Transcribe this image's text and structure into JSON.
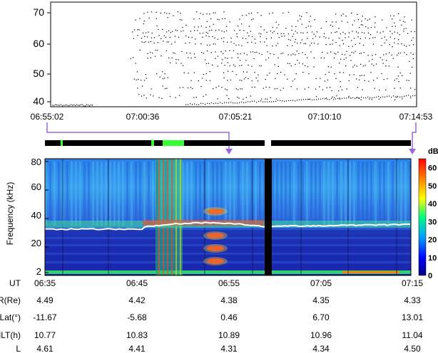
{
  "chart_data": [
    {
      "type": "scatter",
      "title": "",
      "xlabel": "",
      "ylabel": "",
      "x_ticks": [
        "06:55:02",
        "07:00:36",
        "07:05:21",
        "07:10:10",
        "07:14:53"
      ],
      "y_ticks": [
        40,
        50,
        60,
        70
      ],
      "ylim": [
        38,
        73
      ],
      "grid": false,
      "description_series": [
        {
          "x": "07:00:36",
          "values": [
            70,
            60,
            50,
            45
          ]
        },
        {
          "x": "07:05:21",
          "values": [
            70,
            62,
            57,
            50,
            42
          ]
        },
        {
          "x": "07:10:10",
          "values": [
            68,
            62,
            56,
            45,
            40
          ]
        }
      ]
    },
    {
      "type": "heatmap",
      "title": "",
      "xlabel": "",
      "ylabel": "Frequency (kHz)",
      "x_ticks": [
        "06:35",
        "06:45",
        "06:55",
        "07:05",
        "07:15"
      ],
      "y_ticks": [
        2,
        20,
        40,
        60,
        80
      ],
      "ylim": [
        0,
        82
      ],
      "colorbar": {
        "label": "dB",
        "ticks": [
          0,
          10,
          20,
          30,
          40,
          50,
          60
        ],
        "range": [
          0,
          65
        ]
      },
      "upper_hybrid_line_khz": 36,
      "gap_marker": "06:59",
      "bursts": [
        {
          "x": "06:54",
          "y": 45
        },
        {
          "x": "06:54",
          "y": 28
        },
        {
          "x": "06:54",
          "y": 19
        },
        {
          "x": "06:54",
          "y": 10
        }
      ]
    }
  ],
  "ephemeris": {
    "rows": [
      {
        "label": "UT",
        "values": [
          "06:35",
          "06:45",
          "06:55",
          "07:05",
          "07:15"
        ]
      },
      {
        "label": "R(Re)",
        "values": [
          "4.49",
          "4.42",
          "4.38",
          "4.35",
          "4.33"
        ]
      },
      {
        "label": "Lat(°)",
        "values": [
          "-11.67",
          "-5.68",
          "0.46",
          "6.70",
          "13.01"
        ]
      },
      {
        "label": "MLT(h)",
        "values": [
          "10.77",
          "10.83",
          "10.89",
          "10.96",
          "11.04"
        ]
      },
      {
        "label": "L",
        "values": [
          "4.61",
          "4.41",
          "4.31",
          "4.34",
          "4.50"
        ]
      }
    ]
  },
  "colors": {
    "background": "#1a2fb0",
    "line": "#ffffff",
    "accent": "#9966dd"
  }
}
